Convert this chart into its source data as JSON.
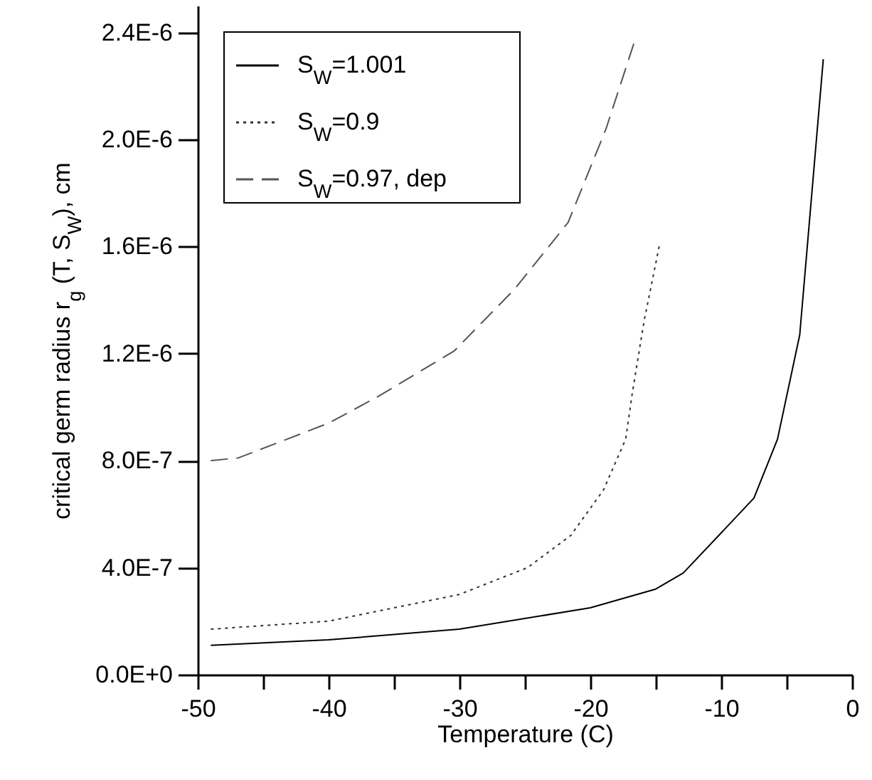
{
  "chart_data": {
    "type": "line",
    "xlabel": "Temperature (C)",
    "ylabel": "critical germ radius r$_{g}$ (T, S$_{W}$),  cm",
    "xlim": [
      -50,
      0
    ],
    "xticks": [
      -50,
      {
        "value": -45,
        "label": null
      },
      -40,
      {
        "value": -35,
        "label": null
      },
      -30,
      {
        "value": -25,
        "label": null
      },
      -20,
      {
        "value": -15,
        "label": null
      },
      -10,
      {
        "value": -5,
        "label": null
      },
      0
    ],
    "ylim": [
      0,
      2.5e-06
    ],
    "yticks": [
      {
        "value": 0,
        "label": "0.0E+0"
      },
      {
        "value": 4e-07,
        "label": "4.0E-7"
      },
      {
        "value": 8e-07,
        "label": "8.0E-7"
      },
      {
        "value": 1.2e-06,
        "label": "1.2E-6"
      },
      {
        "value": 1.6e-06,
        "label": "1.6E-6"
      },
      {
        "value": 2e-06,
        "label": "2.0E-6"
      },
      {
        "value": 2.4e-06,
        "label": "2.4E-6"
      }
    ],
    "grid": false,
    "legend": "top left",
    "series": [
      {
        "name": "S$_{W}$=1.001",
        "color": "#000000",
        "line_style": "solid",
        "x": [
          -49,
          -40,
          -30,
          -20,
          -15,
          -12.9,
          -10,
          -7.5,
          -5.7,
          -4,
          -2.2
        ],
        "values": [
          1.1e-07,
          1.3e-07,
          1.7e-07,
          2.5e-07,
          3.2e-07,
          3.8e-07,
          5.3e-07,
          6.6e-07,
          8.8e-07,
          1.27e-06,
          2.3e-06
        ]
      },
      {
        "name": "S$_{W}$=0.9",
        "color": "#333333",
        "line_style": "dotted",
        "x": [
          -49,
          -40,
          -30,
          -24.8,
          -21.5,
          -19,
          -17.3,
          -16.8,
          -15.9,
          -14.7
        ],
        "values": [
          1.7e-07,
          2e-07,
          3e-07,
          4e-07,
          5.2e-07,
          6.9e-07,
          8.8e-07,
          1.05e-06,
          1.32e-06,
          1.61e-06
        ]
      },
      {
        "name": "S$_{W}$=0.97, dep",
        "color": "#555555",
        "line_style": "dashed",
        "x": [
          -49,
          -46.9,
          -40,
          -36.2,
          -30.4,
          -25.8,
          -21.7,
          -18.8,
          -16.6
        ],
        "values": [
          8e-07,
          8.1e-07,
          9.4e-07,
          1.04e-06,
          1.21e-06,
          1.44e-06,
          1.69e-06,
          2.04e-06,
          2.37e-06
        ]
      }
    ]
  }
}
